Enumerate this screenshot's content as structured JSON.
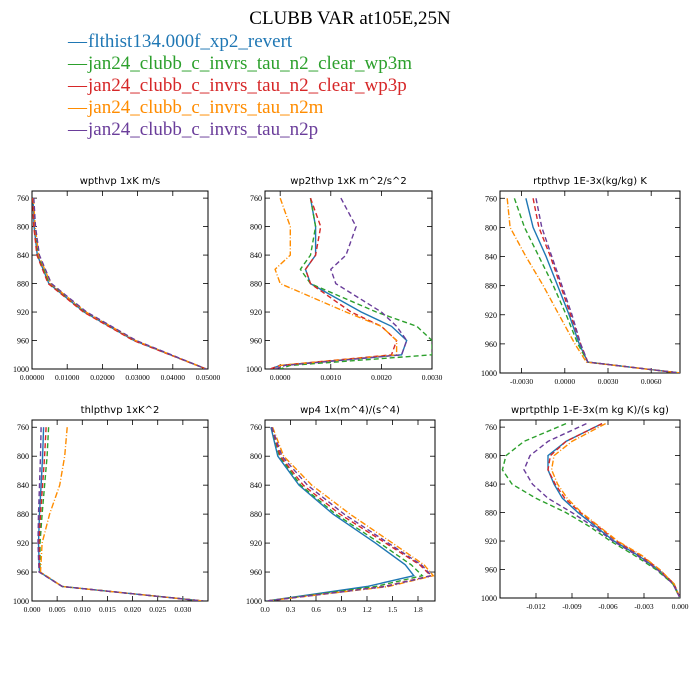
{
  "figure": {
    "title": "CLUBB VAR at105E,25N"
  },
  "legend": [
    {
      "label": "flthist134.000f_xp2_revert",
      "color": "#1f77b4"
    },
    {
      "label": "jan24_clubb_c_invrs_tau_n2_clear_wp3m",
      "color": "#2ca02c"
    },
    {
      "label": "jan24_clubb_c_invrs_tau_n2_clear_wp3p",
      "color": "#d62728"
    },
    {
      "label": "jan24_clubb_c_invrs_tau_n2m",
      "color": "#ff8c00"
    },
    {
      "label": "jan24_clubb_c_invrs_tau_n2p",
      "color": "#6a3d9a"
    }
  ],
  "chart_data": [
    {
      "type": "line",
      "title": "wpthvp  1xK m/s",
      "xlim": [
        0,
        0.05
      ],
      "ylim": [
        1000,
        750
      ],
      "y_reversed": true,
      "xticks": [
        0,
        0.01,
        0.02,
        0.03,
        0.04,
        0.05
      ],
      "xtick_labels": [
        "0.00000",
        "0.01000",
        "0.02000",
        "0.03000",
        "0.04000",
        "0.05000"
      ],
      "yticks": [
        760,
        800,
        840,
        880,
        920,
        960,
        1000
      ],
      "y": [
        760,
        800,
        840,
        880,
        920,
        960,
        1000
      ],
      "series": [
        {
          "color": "#1f77b4",
          "dash": "solid",
          "values": [
            0.0003,
            0.0006,
            0.0015,
            0.0048,
            0.0148,
            0.029,
            0.0495
          ]
        },
        {
          "color": "#2ca02c",
          "dash": "dashed",
          "values": [
            0.0003,
            0.0007,
            0.0017,
            0.005,
            0.015,
            0.0292,
            0.0495
          ]
        },
        {
          "color": "#d62728",
          "dash": "dashed",
          "values": [
            0.0002,
            0.0005,
            0.0014,
            0.0046,
            0.0146,
            0.0288,
            0.0495
          ]
        },
        {
          "color": "#ff8c00",
          "dash": "dashdot",
          "values": [
            0.0004,
            0.0009,
            0.0019,
            0.0053,
            0.0153,
            0.0294,
            0.0495
          ]
        },
        {
          "color": "#6a3d9a",
          "dash": "dashed",
          "values": [
            0.0005,
            0.001,
            0.0021,
            0.0055,
            0.0155,
            0.0296,
            0.0495
          ]
        }
      ]
    },
    {
      "type": "line",
      "title": "wp2thvp  1xK m^2/s^2",
      "xlim": [
        -0.0003,
        0.003
      ],
      "ylim": [
        1000,
        750
      ],
      "y_reversed": true,
      "xticks": [
        0,
        0.001,
        0.002,
        0.003
      ],
      "xtick_labels": [
        "0.0000",
        "0.0010",
        "0.0020",
        "0.0030"
      ],
      "yticks": [
        760,
        800,
        840,
        880,
        920,
        960,
        1000
      ],
      "y": [
        760,
        800,
        840,
        860,
        880,
        920,
        940,
        960,
        980,
        995,
        1000
      ],
      "series": [
        {
          "color": "#1f77b4",
          "dash": "solid",
          "values": [
            0.0006,
            0.0007,
            0.0007,
            0.0005,
            0.0006,
            0.0016,
            0.0022,
            0.0025,
            0.0024,
            0.0,
            -0.0002
          ]
        },
        {
          "color": "#2ca02c",
          "dash": "dashed",
          "values": [
            0.0006,
            0.0007,
            0.0006,
            0.0004,
            0.0006,
            0.0019,
            0.0027,
            0.003,
            0.003,
            0.0002,
            0.0
          ]
        },
        {
          "color": "#d62728",
          "dash": "dashed",
          "values": [
            0.0006,
            0.0008,
            0.0007,
            0.0005,
            0.0006,
            0.0014,
            0.002,
            0.0023,
            0.0022,
            0.0,
            -0.0002
          ]
        },
        {
          "color": "#ff8c00",
          "dash": "dashdot",
          "values": [
            0.0,
            0.0002,
            0.0002,
            -0.0001,
            0.0,
            0.0013,
            0.002,
            0.0023,
            0.0023,
            0.0,
            -0.0001
          ]
        },
        {
          "color": "#6a3d9a",
          "dash": "dashed",
          "values": [
            0.0012,
            0.0015,
            0.0013,
            0.001,
            0.0011,
            0.002,
            0.0023,
            0.0025,
            0.0024,
            0.0001,
            -0.0001
          ]
        }
      ]
    },
    {
      "type": "line",
      "title": "rtpthvp  1E-3x(kg/kg) K",
      "xlim": [
        -0.0045,
        0.008
      ],
      "ylim": [
        1000,
        750
      ],
      "y_reversed": true,
      "xticks": [
        -0.003,
        0,
        0.003,
        0.006
      ],
      "xtick_labels": [
        "-0.0030",
        "0.0000",
        "0.0030",
        "0.0060"
      ],
      "yticks": [
        760,
        800,
        840,
        880,
        920,
        960,
        1000
      ],
      "y": [
        760,
        800,
        840,
        880,
        920,
        960,
        985,
        1000
      ],
      "series": [
        {
          "color": "#1f77b4",
          "dash": "solid",
          "values": [
            -0.0027,
            -0.0022,
            -0.0013,
            -0.0005,
            0.0003,
            0.001,
            0.0016,
            0.008
          ]
        },
        {
          "color": "#2ca02c",
          "dash": "dashed",
          "values": [
            -0.0035,
            -0.0028,
            -0.0018,
            -0.0008,
            0.0001,
            0.0009,
            0.0016,
            0.008
          ]
        },
        {
          "color": "#d62728",
          "dash": "dashed",
          "values": [
            -0.0022,
            -0.0018,
            -0.001,
            -0.0003,
            0.0004,
            0.0011,
            0.0016,
            0.008
          ]
        },
        {
          "color": "#ff8c00",
          "dash": "dashdot",
          "values": [
            -0.004,
            -0.0038,
            -0.0027,
            -0.0015,
            -0.0004,
            0.0007,
            0.0015,
            0.008
          ]
        },
        {
          "color": "#6a3d9a",
          "dash": "dashed",
          "values": [
            -0.002,
            -0.0016,
            -0.0009,
            -0.0002,
            0.0005,
            0.0011,
            0.0016,
            0.008
          ]
        }
      ]
    },
    {
      "type": "line",
      "title": "thlpthvp  1xK^2",
      "xlim": [
        0,
        0.035
      ],
      "ylim": [
        1000,
        750
      ],
      "y_reversed": true,
      "xticks": [
        0,
        0.005,
        0.01,
        0.015,
        0.02,
        0.025,
        0.03
      ],
      "xtick_labels": [
        "0.000",
        "0.005",
        "0.010",
        "0.015",
        "0.020",
        "0.025",
        "0.030"
      ],
      "yticks": [
        760,
        800,
        840,
        880,
        920,
        960,
        1000
      ],
      "y": [
        760,
        800,
        840,
        880,
        920,
        960,
        980,
        1000
      ],
      "series": [
        {
          "color": "#1f77b4",
          "dash": "solid",
          "values": [
            0.0023,
            0.0021,
            0.0018,
            0.0015,
            0.0013,
            0.0015,
            0.006,
            0.034
          ]
        },
        {
          "color": "#2ca02c",
          "dash": "dashed",
          "values": [
            0.0033,
            0.003,
            0.0025,
            0.002,
            0.0016,
            0.0016,
            0.006,
            0.034
          ]
        },
        {
          "color": "#d62728",
          "dash": "dashed",
          "values": [
            0.0028,
            0.0025,
            0.0021,
            0.0017,
            0.0014,
            0.0015,
            0.006,
            0.034
          ]
        },
        {
          "color": "#ff8c00",
          "dash": "dashdot",
          "values": [
            0.007,
            0.0065,
            0.0055,
            0.0035,
            0.002,
            0.0017,
            0.006,
            0.034
          ]
        },
        {
          "color": "#6a3d9a",
          "dash": "dashed",
          "values": [
            0.0018,
            0.0017,
            0.0015,
            0.0013,
            0.0012,
            0.0014,
            0.006,
            0.034
          ]
        }
      ]
    },
    {
      "type": "line",
      "title": "wp4  1x(m^4)/(s^4)",
      "xlim": [
        0,
        2.0
      ],
      "ylim": [
        1000,
        750
      ],
      "y_reversed": true,
      "xticks": [
        0,
        0.3,
        0.6,
        0.9,
        1.2,
        1.5,
        1.8
      ],
      "xtick_labels": [
        "0.0",
        "0.3",
        "0.6",
        "0.9",
        "1.2",
        "1.5",
        "1.8"
      ],
      "yticks": [
        760,
        800,
        840,
        880,
        920,
        960,
        1000
      ],
      "y": [
        760,
        800,
        840,
        880,
        920,
        950,
        965,
        980,
        1000
      ],
      "series": [
        {
          "color": "#1f77b4",
          "dash": "solid",
          "values": [
            0.07,
            0.15,
            0.4,
            0.8,
            1.3,
            1.65,
            1.75,
            1.2,
            0.02
          ]
        },
        {
          "color": "#2ca02c",
          "dash": "dashed",
          "values": [
            0.08,
            0.17,
            0.42,
            0.83,
            1.35,
            1.72,
            1.85,
            1.3,
            0.02
          ]
        },
        {
          "color": "#d62728",
          "dash": "dashed",
          "values": [
            0.08,
            0.18,
            0.45,
            0.88,
            1.42,
            1.82,
            1.95,
            1.4,
            0.02
          ]
        },
        {
          "color": "#ff8c00",
          "dash": "dashdot",
          "values": [
            0.09,
            0.22,
            0.55,
            1.0,
            1.5,
            1.87,
            1.98,
            1.45,
            0.02
          ]
        },
        {
          "color": "#6a3d9a",
          "dash": "dashed",
          "values": [
            0.08,
            0.2,
            0.5,
            0.93,
            1.45,
            1.84,
            1.96,
            1.42,
            0.02
          ]
        }
      ]
    },
    {
      "type": "line",
      "title": "wprtpthlp  1-E-3x(m kg K)/(s kg)",
      "xlim": [
        -0.015,
        0.0
      ],
      "ylim": [
        1000,
        750
      ],
      "y_reversed": true,
      "xticks": [
        -0.012,
        -0.009,
        -0.006,
        -0.003,
        0.0
      ],
      "xtick_labels": [
        "-0.012",
        "-0.009",
        "-0.006",
        "-0.003",
        "0.000"
      ],
      "yticks": [
        760,
        800,
        840,
        880,
        920,
        960,
        1000
      ],
      "y": [
        755,
        780,
        800,
        820,
        840,
        860,
        880,
        900,
        920,
        940,
        960,
        980,
        1000
      ],
      "series": [
        {
          "color": "#1f77b4",
          "dash": "solid",
          "values": [
            -0.0065,
            -0.0095,
            -0.011,
            -0.011,
            -0.0105,
            -0.0098,
            -0.0085,
            -0.007,
            -0.0055,
            -0.0035,
            -0.0018,
            -0.0005,
            0.0
          ]
        },
        {
          "color": "#2ca02c",
          "dash": "dashed",
          "values": [
            -0.0095,
            -0.013,
            -0.0145,
            -0.0148,
            -0.014,
            -0.012,
            -0.0095,
            -0.0075,
            -0.0058,
            -0.0038,
            -0.002,
            -0.0006,
            0.0
          ]
        },
        {
          "color": "#d62728",
          "dash": "dashed",
          "values": [
            -0.0065,
            -0.0095,
            -0.0108,
            -0.011,
            -0.0104,
            -0.0096,
            -0.0083,
            -0.0068,
            -0.0053,
            -0.0033,
            -0.0017,
            -0.0005,
            0.0
          ]
        },
        {
          "color": "#ff8c00",
          "dash": "dashdot",
          "values": [
            -0.0062,
            -0.009,
            -0.0105,
            -0.0107,
            -0.0102,
            -0.0094,
            -0.0082,
            -0.0067,
            -0.0052,
            -0.0032,
            -0.0017,
            -0.0005,
            0.0
          ]
        },
        {
          "color": "#6a3d9a",
          "dash": "dashed",
          "values": [
            -0.0078,
            -0.011,
            -0.0125,
            -0.013,
            -0.0123,
            -0.011,
            -0.009,
            -0.0072,
            -0.0056,
            -0.0036,
            -0.0019,
            -0.0006,
            0.0
          ]
        }
      ]
    }
  ]
}
